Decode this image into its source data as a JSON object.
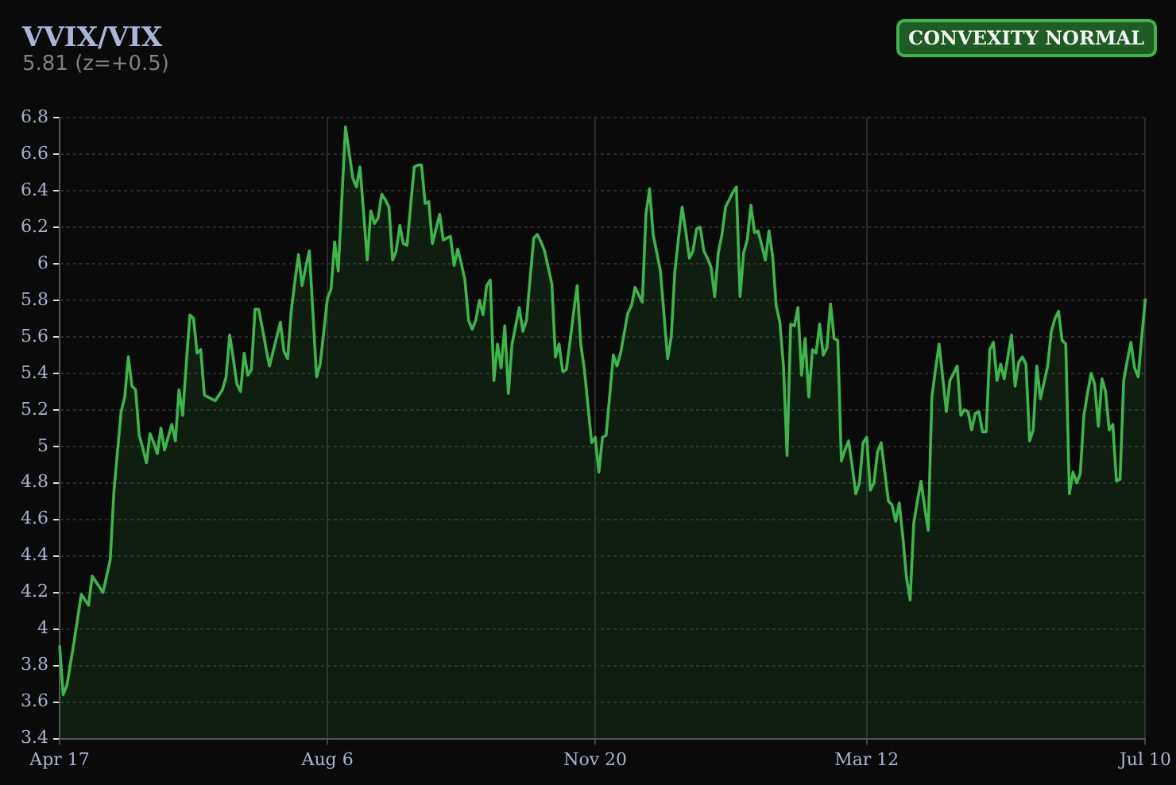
{
  "chart_data": {
    "type": "area",
    "title": "VVIX/VIX",
    "subtitle": "5.81 (z=+0.5)",
    "annotations": [
      "CONVEXITY NORMAL"
    ],
    "categories": [
      "Apr 17",
      null,
      null,
      null,
      null,
      null,
      null,
      null,
      null,
      null,
      null,
      null,
      null,
      null,
      null,
      null,
      null,
      null,
      null,
      null,
      null,
      null,
      null,
      null,
      null,
      null,
      null,
      null,
      null,
      null,
      null,
      null,
      null,
      null,
      null,
      null,
      null,
      null,
      null,
      null,
      null,
      null,
      null,
      null,
      null,
      null,
      null,
      null,
      null,
      null,
      null,
      null,
      null,
      null,
      null,
      null,
      null,
      null,
      null,
      null,
      null,
      null,
      null,
      null,
      null,
      null,
      null,
      null,
      null,
      null,
      null,
      null,
      null,
      null,
      "Aug 6",
      null,
      null,
      null,
      null,
      null,
      null,
      null,
      null,
      null,
      null,
      null,
      null,
      null,
      null,
      null,
      null,
      null,
      null,
      null,
      null,
      null,
      null,
      null,
      null,
      null,
      null,
      null,
      null,
      null,
      null,
      null,
      null,
      null,
      null,
      null,
      null,
      null,
      null,
      null,
      null,
      null,
      null,
      null,
      null,
      null,
      null,
      null,
      null,
      null,
      null,
      null,
      null,
      null,
      null,
      null,
      null,
      null,
      null,
      null,
      null,
      null,
      null,
      null,
      null,
      null,
      null,
      null,
      null,
      null,
      null,
      null,
      null,
      null,
      "Nov 20",
      null,
      null,
      null,
      null,
      null,
      null,
      null,
      null,
      null,
      null,
      null,
      null,
      null,
      null,
      null,
      null,
      null,
      null,
      null,
      null,
      null,
      null,
      null,
      null,
      null,
      null,
      null,
      null,
      null,
      null,
      null,
      null,
      null,
      null,
      null,
      null,
      null,
      null,
      null,
      null,
      null,
      null,
      null,
      null,
      null,
      null,
      null,
      null,
      null,
      null,
      null,
      null,
      null,
      null,
      null,
      null,
      null,
      null,
      null,
      null,
      null,
      null,
      null,
      null,
      null,
      null,
      null,
      null,
      null,
      null,
      null,
      null,
      null,
      null,
      "Mar 12",
      null,
      null,
      null,
      null,
      null,
      null,
      null,
      null,
      null,
      null,
      null,
      null,
      null,
      null,
      null,
      null,
      null,
      null,
      null,
      null,
      null,
      null,
      null,
      null,
      null,
      null,
      null,
      null,
      null,
      null,
      null,
      null,
      null,
      null,
      null,
      null,
      null,
      null,
      null,
      null,
      null,
      null,
      null,
      null,
      null,
      null,
      null,
      null,
      null,
      null,
      null,
      null,
      null,
      null,
      null,
      null,
      null,
      null,
      null,
      null,
      null,
      null,
      null,
      null,
      null,
      null,
      null,
      null,
      null,
      null,
      null,
      null,
      null,
      null,
      null,
      null,
      "Jul 10"
    ],
    "ylim": [
      3.4,
      6.8
    ],
    "yticks": [
      3.4,
      3.6,
      3.8,
      4,
      4.2,
      4.4,
      4.6,
      4.8,
      5,
      5.2,
      5.4,
      5.6,
      5.8,
      6,
      6.2,
      6.4,
      6.6,
      6.8
    ],
    "grid": true,
    "legend": false,
    "marker": "none",
    "line_style": "solid",
    "series": [
      {
        "color": "#3cb54a",
        "values": [
          3.91,
          3.64,
          3.69,
          3.81,
          3.93,
          4.06,
          4.19,
          4.16,
          4.13,
          4.29,
          4.26,
          4.23,
          4.2,
          4.29,
          4.38,
          4.75,
          4.97,
          5.19,
          5.27,
          5.49,
          5.33,
          5.31,
          5.06,
          4.99,
          4.91,
          5.07,
          5.02,
          4.96,
          5.1,
          4.98,
          5.05,
          5.12,
          5.03,
          5.31,
          5.17,
          5.45,
          5.72,
          5.7,
          5.51,
          5.53,
          5.28,
          5.27,
          5.26,
          5.25,
          5.28,
          5.31,
          5.38,
          5.61,
          5.48,
          5.34,
          5.3,
          5.51,
          5.39,
          5.42,
          5.75,
          5.75,
          5.65,
          5.54,
          5.44,
          5.52,
          5.6,
          5.68,
          5.52,
          5.48,
          5.74,
          5.9,
          6.05,
          5.88,
          5.98,
          6.07,
          5.73,
          5.38,
          5.45,
          5.63,
          5.81,
          5.86,
          6.12,
          5.96,
          6.36,
          6.75,
          6.61,
          6.47,
          6.42,
          6.53,
          6.28,
          6.02,
          6.29,
          6.22,
          6.25,
          6.38,
          6.35,
          6.31,
          6.02,
          6.07,
          6.21,
          6.11,
          6.1,
          6.32,
          6.53,
          6.54,
          6.54,
          6.33,
          6.34,
          6.11,
          6.19,
          6.27,
          6.13,
          6.14,
          6.15,
          5.99,
          6.08,
          6.0,
          5.91,
          5.69,
          5.64,
          5.69,
          5.8,
          5.72,
          5.88,
          5.91,
          5.36,
          5.56,
          5.43,
          5.66,
          5.29,
          5.56,
          5.66,
          5.76,
          5.63,
          5.69,
          5.92,
          6.14,
          6.16,
          6.12,
          6.07,
          5.98,
          5.89,
          5.49,
          5.56,
          5.41,
          5.42,
          5.57,
          5.73,
          5.88,
          5.56,
          5.42,
          5.22,
          5.02,
          5.05,
          4.86,
          5.05,
          5.06,
          5.28,
          5.5,
          5.44,
          5.51,
          5.62,
          5.73,
          5.77,
          5.87,
          5.83,
          5.79,
          6.27,
          6.41,
          6.16,
          6.06,
          5.96,
          5.72,
          5.48,
          5.6,
          5.96,
          6.14,
          6.31,
          6.18,
          6.03,
          6.07,
          6.19,
          6.2,
          6.07,
          6.03,
          5.98,
          5.82,
          6.06,
          6.16,
          6.31,
          6.35,
          6.39,
          6.42,
          5.82,
          6.06,
          6.13,
          6.32,
          6.17,
          6.18,
          6.1,
          6.02,
          6.18,
          6.04,
          5.77,
          5.68,
          5.44,
          4.95,
          5.67,
          5.66,
          5.76,
          5.39,
          5.59,
          5.27,
          5.53,
          5.51,
          5.67,
          5.5,
          5.54,
          5.78,
          5.59,
          5.58,
          4.92,
          4.98,
          5.03,
          4.89,
          4.74,
          4.8,
          5.02,
          5.05,
          4.76,
          4.8,
          4.97,
          5.02,
          4.86,
          4.7,
          4.68,
          4.59,
          4.69,
          4.5,
          4.28,
          4.16,
          4.58,
          4.7,
          4.81,
          4.67,
          4.54,
          5.27,
          5.42,
          5.56,
          5.38,
          5.19,
          5.36,
          5.4,
          5.44,
          5.17,
          5.2,
          5.19,
          5.09,
          5.18,
          5.19,
          5.08,
          5.08,
          5.53,
          5.57,
          5.36,
          5.45,
          5.37,
          5.49,
          5.61,
          5.33,
          5.46,
          5.49,
          5.45,
          5.03,
          5.09,
          5.44,
          5.26,
          5.35,
          5.44,
          5.63,
          5.7,
          5.74,
          5.58,
          5.56,
          4.74,
          4.86,
          4.8,
          4.85,
          5.17,
          5.29,
          5.4,
          5.34,
          5.11,
          5.37,
          5.3,
          5.09,
          5.12,
          4.81,
          4.82,
          5.36,
          5.47,
          5.57,
          5.43,
          5.38,
          5.6,
          5.81
        ]
      }
    ]
  }
}
